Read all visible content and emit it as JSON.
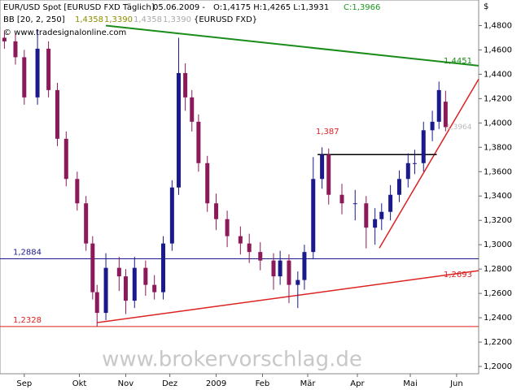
{
  "chart_data": {
    "type": "candlestick",
    "header": {
      "symbol": "EUR/USD Spot [EURUSD FXD  Täglich]",
      "date": "05.06.2009 -",
      "ohl": "O:1,4175 H:1,4265 L:1,3931",
      "close": "C:1,3966",
      "indicator": "BB [20, 2, 250]",
      "indicator_upper": "1,4358",
      "indicator_lower": "1,3390",
      "indicator_upper2": "1,4358",
      "indicator_lower2": "1,3390",
      "indicator_source": "{EURUSD FXD}",
      "copyright": "© www.tradesignalonline.com"
    },
    "currency": "$",
    "watermark": "www.brokervorschlag.de",
    "up_color": "#1a1a8c",
    "down_color": "#8c1a5a",
    "x": [
      0,
      5,
      9,
      15,
      20,
      24,
      28,
      33,
      37,
      40,
      42,
      46,
      52,
      55,
      59,
      64,
      68,
      72,
      76,
      79,
      82,
      85,
      88,
      92,
      96,
      101,
      107,
      111,
      116,
      122,
      125,
      129,
      133,
      136,
      140,
      144,
      147,
      153,
      159,
      164,
      168,
      171,
      175,
      179,
      183,
      186,
      190,
      194,
      197,
      200
    ],
    "open": [
      1.47,
      1.467,
      1.454,
      1.421,
      1.461,
      1.427,
      1.387,
      1.354,
      1.334,
      1.301,
      1.261,
      1.244,
      1.281,
      1.274,
      1.254,
      1.281,
      1.267,
      1.261,
      1.301,
      1.347,
      1.441,
      1.421,
      1.401,
      1.367,
      1.334,
      1.321,
      1.307,
      1.301,
      1.294,
      1.287,
      1.274,
      1.287,
      1.267,
      1.271,
      1.294,
      1.354,
      1.374,
      1.341,
      1.334,
      1.334,
      1.314,
      1.321,
      1.327,
      1.341,
      1.354,
      1.367,
      1.367,
      1.394,
      1.401,
      1.4175
    ],
    "high": [
      1.476,
      1.473,
      1.46,
      1.477,
      1.467,
      1.433,
      1.393,
      1.36,
      1.34,
      1.307,
      1.267,
      1.293,
      1.29,
      1.28,
      1.29,
      1.287,
      1.275,
      1.307,
      1.353,
      1.47,
      1.449,
      1.427,
      1.407,
      1.373,
      1.342,
      1.328,
      1.315,
      1.309,
      1.302,
      1.293,
      1.295,
      1.292,
      1.278,
      1.3,
      1.372,
      1.38,
      1.379,
      1.35,
      1.345,
      1.34,
      1.33,
      1.334,
      1.349,
      1.361,
      1.375,
      1.378,
      1.401,
      1.41,
      1.434,
      1.4265
    ],
    "low": [
      1.461,
      1.448,
      1.415,
      1.415,
      1.421,
      1.381,
      1.348,
      1.328,
      1.295,
      1.255,
      1.233,
      1.238,
      1.262,
      1.243,
      1.248,
      1.258,
      1.255,
      1.255,
      1.295,
      1.341,
      1.41,
      1.393,
      1.36,
      1.327,
      1.312,
      1.298,
      1.292,
      1.285,
      1.279,
      1.263,
      1.267,
      1.252,
      1.248,
      1.263,
      1.288,
      1.346,
      1.333,
      1.325,
      1.32,
      1.297,
      1.3,
      1.312,
      1.32,
      1.335,
      1.347,
      1.358,
      1.36,
      1.385,
      1.395,
      1.3931
    ],
    "close": [
      1.467,
      1.454,
      1.421,
      1.461,
      1.427,
      1.387,
      1.354,
      1.334,
      1.301,
      1.261,
      1.244,
      1.281,
      1.274,
      1.254,
      1.281,
      1.267,
      1.261,
      1.301,
      1.347,
      1.441,
      1.421,
      1.401,
      1.367,
      1.334,
      1.321,
      1.307,
      1.301,
      1.294,
      1.287,
      1.274,
      1.287,
      1.267,
      1.271,
      1.294,
      1.354,
      1.374,
      1.341,
      1.334,
      1.334,
      1.314,
      1.321,
      1.327,
      1.341,
      1.354,
      1.367,
      1.367,
      1.394,
      1.401,
      1.427,
      1.3966
    ],
    "xlim": [
      -2,
      215
    ],
    "xticks": [
      {
        "value": 9,
        "label": "Sep"
      },
      {
        "value": 34,
        "label": "Okt"
      },
      {
        "value": 55,
        "label": "Nov"
      },
      {
        "value": 75,
        "label": "Dez"
      },
      {
        "value": 96,
        "label": "2009"
      },
      {
        "value": 117,
        "label": "Feb"
      },
      {
        "value": 137.5,
        "label": "Mär"
      },
      {
        "value": 160,
        "label": "Apr"
      },
      {
        "value": 184,
        "label": "Mai"
      },
      {
        "value": 205,
        "label": "Jun"
      }
    ],
    "ylim": [
      1.194,
      1.501
    ],
    "yticks": [
      {
        "value": 1.2,
        "label": "1,2000"
      },
      {
        "value": 1.22,
        "label": "1,2200"
      },
      {
        "value": 1.24,
        "label": "1,2400"
      },
      {
        "value": 1.26,
        "label": "1,2600"
      },
      {
        "value": 1.28,
        "label": "1,2800"
      },
      {
        "value": 1.3,
        "label": "1,3000"
      },
      {
        "value": 1.32,
        "label": "1,3200"
      },
      {
        "value": 1.34,
        "label": "1,3400"
      },
      {
        "value": 1.36,
        "label": "1,3600"
      },
      {
        "value": 1.38,
        "label": "1,3800"
      },
      {
        "value": 1.4,
        "label": "1,4000"
      },
      {
        "value": 1.42,
        "label": "1,4200"
      },
      {
        "value": 1.44,
        "label": "1,4400"
      },
      {
        "value": 1.46,
        "label": "1,4600"
      },
      {
        "value": 1.48,
        "label": "1,4800"
      }
    ],
    "hlines": [
      {
        "value": 1.2884,
        "label": "1,2884",
        "color": "#1a1a8c"
      },
      {
        "value": 1.2328,
        "label": "1,2328",
        "color": "#dd2222"
      }
    ],
    "trendlines": [
      {
        "x": [
          46,
          215
        ],
        "y": [
          1.48,
          1.447
        ],
        "color": "#1a8c1a",
        "label": {
          "value": 1.4451,
          "label": "1,4451"
        }
      },
      {
        "x": [
          42,
          215
        ],
        "y": [
          1.236,
          1.2787
        ],
        "color": "#dd2222",
        "label": {
          "value": 1.2693,
          "label": "1,2693"
        }
      },
      {
        "x": [
          170,
          215
        ],
        "y": [
          1.2973,
          1.436
        ],
        "color": "#dd2222",
        "label": {
          "value": 1.387,
          "label": "1,387"
        }
      },
      {
        "x": [
          142,
          196
        ],
        "y": [
          1.374,
          1.374
        ],
        "color": "#000000"
      }
    ],
    "last_label": {
      "value": 1.3964,
      "label": "1,3964"
    }
  }
}
